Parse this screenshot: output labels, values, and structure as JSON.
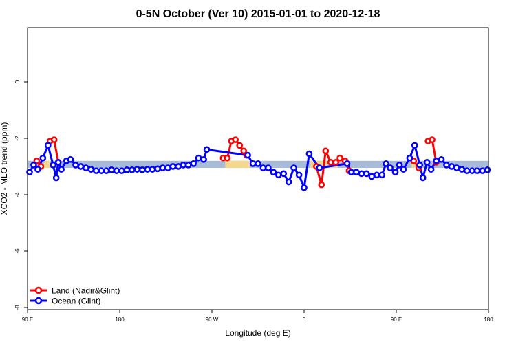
{
  "chart_data": {
    "type": "line",
    "title": "0-5N October (Ver 10)   2015-01-01 to 2020-12-18",
    "xlabel": "Longitude (deg E)",
    "ylabel": "XCO2 - MLO trend (ppm)",
    "x_ticks": [
      {
        "value": 90,
        "label": "90 E"
      },
      {
        "value": 180,
        "label": "180"
      },
      {
        "value": 270,
        "label": "90 W"
      },
      {
        "value": 360,
        "label": "0"
      },
      {
        "value": 450,
        "label": "90 E"
      },
      {
        "value": 540,
        "label": "180"
      }
    ],
    "y_ticks": [
      {
        "value": 0,
        "label": "0"
      },
      {
        "value": -2,
        "label": "-2"
      },
      {
        "value": -4,
        "label": "-4"
      },
      {
        "value": -6,
        "label": "-6"
      },
      {
        "value": -8,
        "label": "-8"
      }
    ],
    "xlim": [
      90,
      540
    ],
    "ylim": [
      -8,
      2
    ],
    "bands": [
      {
        "kind": "ocean",
        "color": "#a8bcd8",
        "x": [
          90,
          540
        ],
        "y": [
          -3.05,
          -2.8
        ]
      },
      {
        "kind": "land",
        "color": "#f5d890",
        "x": [
          106,
          112
        ],
        "y": [
          -3.05,
          -2.8
        ]
      },
      {
        "kind": "land",
        "color": "#f5d890",
        "x": [
          283,
          307
        ],
        "y": [
          -3.05,
          -2.8
        ]
      },
      {
        "kind": "land",
        "color": "#f5d890",
        "x": [
          366,
          393
        ],
        "y": [
          -3.05,
          -2.8
        ]
      },
      {
        "kind": "land",
        "color": "#f5d890",
        "x": [
          465,
          472
        ],
        "y": [
          -3.05,
          -2.8
        ]
      }
    ],
    "series": [
      {
        "name": "Land (Nadir&Glint)",
        "color": "#ff0000",
        "segments": [
          [
            [
              99,
              -2.8
            ],
            [
              103,
              -3.0
            ]
          ],
          [
            [
              112,
              -2.1
            ],
            [
              116,
              -2.05
            ],
            [
              120,
              -2.85
            ]
          ],
          [
            [
              281,
              -2.7
            ],
            [
              285,
              -2.7
            ],
            [
              289,
              -2.1
            ],
            [
              293,
              -2.05
            ],
            [
              297,
              -2.25
            ],
            [
              301,
              -2.45
            ],
            [
              304,
              -2.6
            ]
          ],
          [
            [
              372,
              -3.0
            ],
            [
              377,
              -3.65
            ],
            [
              381,
              -2.45
            ],
            [
              386,
              -2.85
            ],
            [
              391,
              -2.85
            ],
            [
              395,
              -2.7
            ],
            [
              400,
              -2.8
            ],
            [
              404,
              -3.15
            ]
          ],
          [
            [
              467,
              -2.8
            ],
            [
              472,
              -3.05
            ]
          ],
          [
            [
              481,
              -2.1
            ],
            [
              485,
              -2.05
            ],
            [
              489,
              -2.85
            ]
          ]
        ]
      },
      {
        "name": "Ocean (Glint)",
        "color": "#0000ff",
        "points": [
          [
            92,
            -3.2
          ],
          [
            96,
            -2.95
          ],
          [
            100,
            -3.1
          ],
          [
            105,
            -2.7
          ],
          [
            110,
            -2.25
          ],
          [
            115,
            -2.95
          ],
          [
            118,
            -3.4
          ],
          [
            120,
            -2.85
          ],
          [
            123,
            -3.1
          ],
          [
            128,
            -2.8
          ],
          [
            132,
            -2.75
          ],
          [
            137,
            -2.95
          ],
          [
            142,
            -3.0
          ],
          [
            147,
            -3.05
          ],
          [
            152,
            -3.1
          ],
          [
            157,
            -3.15
          ],
          [
            162,
            -3.15
          ],
          [
            167,
            -3.15
          ],
          [
            172,
            -3.12
          ],
          [
            177,
            -3.15
          ],
          [
            182,
            -3.15
          ],
          [
            187,
            -3.12
          ],
          [
            192,
            -3.12
          ],
          [
            197,
            -3.1
          ],
          [
            202,
            -3.12
          ],
          [
            207,
            -3.1
          ],
          [
            212,
            -3.1
          ],
          [
            217,
            -3.08
          ],
          [
            222,
            -3.05
          ],
          [
            227,
            -3.05
          ],
          [
            232,
            -3.0
          ],
          [
            237,
            -3.0
          ],
          [
            242,
            -2.95
          ],
          [
            247,
            -2.95
          ],
          [
            252,
            -2.9
          ],
          [
            257,
            -2.7
          ],
          [
            262,
            -2.75
          ],
          [
            265,
            -2.4
          ],
          [
            305,
            -2.6
          ],
          [
            310,
            -2.9
          ],
          [
            315,
            -2.9
          ],
          [
            320,
            -3.05
          ],
          [
            325,
            -3.05
          ],
          [
            330,
            -3.2
          ],
          [
            335,
            -3.3
          ],
          [
            340,
            -3.25
          ],
          [
            345,
            -3.55
          ],
          [
            350,
            -3.05
          ],
          [
            355,
            -3.3
          ],
          [
            360,
            -3.75
          ],
          [
            365,
            -2.55
          ],
          [
            375,
            -3.05
          ],
          [
            402,
            -2.9
          ],
          [
            406,
            -3.2
          ],
          [
            411,
            -3.2
          ],
          [
            416,
            -3.25
          ],
          [
            421,
            -3.25
          ],
          [
            426,
            -3.35
          ],
          [
            431,
            -3.3
          ],
          [
            436,
            -3.3
          ],
          [
            440,
            -2.9
          ],
          [
            444,
            -3.05
          ],
          [
            449,
            -3.2
          ],
          [
            453,
            -2.95
          ],
          [
            457,
            -3.1
          ],
          [
            463,
            -2.7
          ],
          [
            468,
            -2.25
          ],
          [
            473,
            -2.95
          ],
          [
            476,
            -3.4
          ],
          [
            480,
            -2.85
          ],
          [
            484,
            -3.1
          ],
          [
            489,
            -2.8
          ],
          [
            494,
            -2.75
          ],
          [
            499,
            -2.95
          ],
          [
            504,
            -3.0
          ],
          [
            509,
            -3.05
          ],
          [
            514,
            -3.1
          ],
          [
            519,
            -3.15
          ],
          [
            524,
            -3.15
          ],
          [
            529,
            -3.15
          ],
          [
            534,
            -3.15
          ],
          [
            539,
            -3.12
          ]
        ]
      }
    ],
    "legend": {
      "position": "bottom-left",
      "entries": [
        {
          "label": "Land (Nadir&Glint)",
          "color": "#ff0000"
        },
        {
          "label": "Ocean (Glint)",
          "color": "#0000ff"
        }
      ]
    },
    "grid": false
  }
}
